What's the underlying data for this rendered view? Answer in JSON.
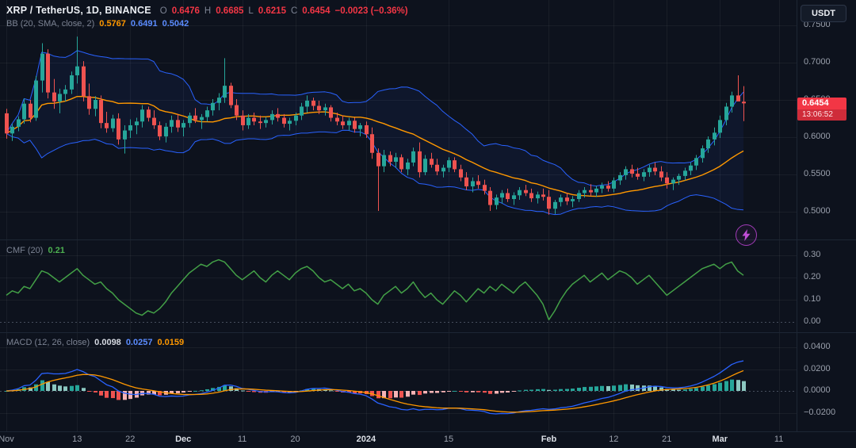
{
  "header": {
    "symbol_title": "XRP / TetherUS, 1D, BINANCE",
    "ohlc": {
      "o_label": "O",
      "o_value": "0.6476",
      "h_label": "H",
      "h_value": "0.6685",
      "l_label": "L",
      "l_value": "0.6215",
      "c_label": "C",
      "c_value": "0.6454",
      "change": "−0.0023 (−0.36%)"
    },
    "bb_legend": {
      "label": "BB (20, SMA, close, 2)",
      "basis": "0.5767",
      "upper": "0.6491",
      "lower": "0.5042"
    },
    "usdt_button": "USDT"
  },
  "price_scale": {
    "badge": {
      "price": "0.6454",
      "countdown": "13:06:52"
    }
  },
  "panes": {
    "cmf": {
      "title": "CMF (20)",
      "value": "0.21"
    },
    "macd": {
      "title": "MACD (12, 26, close)",
      "hist": "0.0098",
      "macd": "0.0257",
      "signal": "0.0159"
    }
  },
  "colors": {
    "background": "#0d121d",
    "grid": "rgba(255,255,255,0.05)",
    "separator": "#1d2634",
    "zero_line": "rgba(140,152,172,0.45)",
    "up": "#26a69a",
    "down": "#ef5350",
    "bb_band": "#2962ff",
    "bb_basis": "#ff9800",
    "bb_fill": "rgba(41,98,255,0.07)",
    "cmf_line": "#43a047",
    "macd_line": "#2962ff",
    "signal_line": "#ff9800",
    "hist_up": "#26a69a",
    "hist_up_fade": "#8cc8c1",
    "hist_down": "#ef5350",
    "hist_down_fade": "#f5b3b5",
    "badge_bg": "#f23645",
    "value_red": "#f23645",
    "value_blue": "#5b8cff",
    "value_orange": "#ff9800",
    "value_green": "#4caf50"
  },
  "chart_data": {
    "type": "candlestick",
    "title": "XRP / TetherUS, 1D, BINANCE",
    "interval": "1D",
    "last_price": 0.6454,
    "price_grid": {
      "values": [
        0.75,
        0.7,
        0.65,
        0.6,
        0.55,
        0.5
      ],
      "labels": [
        "0.7500",
        "0.7000",
        "0.6500",
        "0.6000",
        "0.5500",
        "0.5000"
      ]
    },
    "x_axis": {
      "ticks": [
        {
          "label": "Nov",
          "index": 0,
          "major": false
        },
        {
          "label": "13",
          "index": 12,
          "major": false
        },
        {
          "label": "22",
          "index": 21,
          "major": false
        },
        {
          "label": "Dec",
          "index": 30,
          "major": true
        },
        {
          "label": "11",
          "index": 40,
          "major": false
        },
        {
          "label": "20",
          "index": 49,
          "major": false
        },
        {
          "label": "2024",
          "index": 61,
          "major": true
        },
        {
          "label": "15",
          "index": 75,
          "major": false
        },
        {
          "label": "Feb",
          "index": 92,
          "major": true
        },
        {
          "label": "12",
          "index": 103,
          "major": false
        },
        {
          "label": "21",
          "index": 112,
          "major": false
        },
        {
          "label": "Mar",
          "index": 121,
          "major": true
        },
        {
          "label": "11",
          "index": 131,
          "major": false
        }
      ]
    },
    "candles": [
      [
        0.632,
        0.638,
        0.598,
        0.605
      ],
      [
        0.605,
        0.618,
        0.595,
        0.614
      ],
      [
        0.614,
        0.628,
        0.608,
        0.624
      ],
      [
        0.624,
        0.652,
        0.618,
        0.645
      ],
      [
        0.645,
        0.65,
        0.62,
        0.626
      ],
      [
        0.626,
        0.682,
        0.622,
        0.676
      ],
      [
        0.676,
        0.726,
        0.66,
        0.712
      ],
      [
        0.712,
        0.718,
        0.652,
        0.66
      ],
      [
        0.66,
        0.678,
        0.638,
        0.648
      ],
      [
        0.648,
        0.665,
        0.632,
        0.658
      ],
      [
        0.658,
        0.67,
        0.648,
        0.664
      ],
      [
        0.664,
        0.688,
        0.658,
        0.683
      ],
      [
        0.683,
        0.735,
        0.672,
        0.695
      ],
      [
        0.695,
        0.702,
        0.648,
        0.655
      ],
      [
        0.655,
        0.672,
        0.63,
        0.638
      ],
      [
        0.638,
        0.655,
        0.628,
        0.65
      ],
      [
        0.65,
        0.656,
        0.612,
        0.619
      ],
      [
        0.619,
        0.634,
        0.606,
        0.612
      ],
      [
        0.612,
        0.63,
        0.607,
        0.625
      ],
      [
        0.625,
        0.632,
        0.59,
        0.597
      ],
      [
        0.597,
        0.616,
        0.578,
        0.609
      ],
      [
        0.609,
        0.624,
        0.599,
        0.616
      ],
      [
        0.616,
        0.626,
        0.604,
        0.621
      ],
      [
        0.621,
        0.643,
        0.613,
        0.637
      ],
      [
        0.637,
        0.641,
        0.621,
        0.626
      ],
      [
        0.626,
        0.636,
        0.611,
        0.616
      ],
      [
        0.616,
        0.621,
        0.596,
        0.601
      ],
      [
        0.601,
        0.619,
        0.593,
        0.614
      ],
      [
        0.614,
        0.629,
        0.606,
        0.623
      ],
      [
        0.623,
        0.631,
        0.607,
        0.613
      ],
      [
        0.613,
        0.623,
        0.601,
        0.619
      ],
      [
        0.619,
        0.633,
        0.613,
        0.629
      ],
      [
        0.629,
        0.639,
        0.619,
        0.623
      ],
      [
        0.623,
        0.631,
        0.611,
        0.627
      ],
      [
        0.627,
        0.641,
        0.621,
        0.636
      ],
      [
        0.636,
        0.651,
        0.629,
        0.646
      ],
      [
        0.646,
        0.659,
        0.636,
        0.653
      ],
      [
        0.653,
        0.706,
        0.646,
        0.669
      ],
      [
        0.669,
        0.673,
        0.639,
        0.643
      ],
      [
        0.643,
        0.651,
        0.623,
        0.629
      ],
      [
        0.629,
        0.636,
        0.609,
        0.616
      ],
      [
        0.616,
        0.631,
        0.611,
        0.626
      ],
      [
        0.626,
        0.633,
        0.616,
        0.621
      ],
      [
        0.621,
        0.629,
        0.611,
        0.619
      ],
      [
        0.619,
        0.627,
        0.613,
        0.623
      ],
      [
        0.623,
        0.636,
        0.617,
        0.631
      ],
      [
        0.631,
        0.639,
        0.621,
        0.626
      ],
      [
        0.626,
        0.631,
        0.613,
        0.618
      ],
      [
        0.618,
        0.626,
        0.609,
        0.622
      ],
      [
        0.622,
        0.633,
        0.616,
        0.629
      ],
      [
        0.629,
        0.646,
        0.623,
        0.641
      ],
      [
        0.641,
        0.656,
        0.633,
        0.649
      ],
      [
        0.649,
        0.653,
        0.636,
        0.642
      ],
      [
        0.642,
        0.649,
        0.631,
        0.636
      ],
      [
        0.636,
        0.645,
        0.629,
        0.64
      ],
      [
        0.64,
        0.643,
        0.621,
        0.626
      ],
      [
        0.626,
        0.633,
        0.616,
        0.621
      ],
      [
        0.621,
        0.629,
        0.611,
        0.616
      ],
      [
        0.616,
        0.626,
        0.609,
        0.622
      ],
      [
        0.622,
        0.626,
        0.606,
        0.611
      ],
      [
        0.611,
        0.619,
        0.601,
        0.616
      ],
      [
        0.616,
        0.621,
        0.599,
        0.604
      ],
      [
        0.604,
        0.613,
        0.571,
        0.579
      ],
      [
        0.579,
        0.585,
        0.501,
        0.561
      ],
      [
        0.561,
        0.583,
        0.553,
        0.576
      ],
      [
        0.576,
        0.581,
        0.561,
        0.567
      ],
      [
        0.567,
        0.579,
        0.559,
        0.573
      ],
      [
        0.573,
        0.577,
        0.553,
        0.557
      ],
      [
        0.557,
        0.571,
        0.549,
        0.566
      ],
      [
        0.566,
        0.586,
        0.561,
        0.581
      ],
      [
        0.581,
        0.593,
        0.546,
        0.553
      ],
      [
        0.553,
        0.576,
        0.549,
        0.571
      ],
      [
        0.571,
        0.579,
        0.559,
        0.563
      ],
      [
        0.563,
        0.571,
        0.549,
        0.554
      ],
      [
        0.554,
        0.563,
        0.546,
        0.559
      ],
      [
        0.559,
        0.573,
        0.553,
        0.569
      ],
      [
        0.569,
        0.573,
        0.553,
        0.557
      ],
      [
        0.557,
        0.563,
        0.541,
        0.546
      ],
      [
        0.546,
        0.553,
        0.529,
        0.534
      ],
      [
        0.534,
        0.546,
        0.526,
        0.541
      ],
      [
        0.541,
        0.549,
        0.531,
        0.536
      ],
      [
        0.536,
        0.543,
        0.523,
        0.528
      ],
      [
        0.528,
        0.533,
        0.501,
        0.509
      ],
      [
        0.509,
        0.523,
        0.503,
        0.519
      ],
      [
        0.519,
        0.529,
        0.511,
        0.525
      ],
      [
        0.525,
        0.531,
        0.513,
        0.517
      ],
      [
        0.517,
        0.526,
        0.509,
        0.522
      ],
      [
        0.522,
        0.533,
        0.516,
        0.529
      ],
      [
        0.529,
        0.536,
        0.521,
        0.525
      ],
      [
        0.525,
        0.531,
        0.513,
        0.518
      ],
      [
        0.518,
        0.527,
        0.511,
        0.523
      ],
      [
        0.523,
        0.531,
        0.515,
        0.52
      ],
      [
        0.52,
        0.529,
        0.496,
        0.504
      ],
      [
        0.504,
        0.516,
        0.497,
        0.513
      ],
      [
        0.513,
        0.523,
        0.507,
        0.519
      ],
      [
        0.519,
        0.525,
        0.509,
        0.514
      ],
      [
        0.514,
        0.521,
        0.506,
        0.517
      ],
      [
        0.517,
        0.529,
        0.513,
        0.525
      ],
      [
        0.525,
        0.533,
        0.519,
        0.529
      ],
      [
        0.529,
        0.537,
        0.521,
        0.526
      ],
      [
        0.526,
        0.535,
        0.52,
        0.531
      ],
      [
        0.531,
        0.539,
        0.525,
        0.535
      ],
      [
        0.535,
        0.541,
        0.527,
        0.531
      ],
      [
        0.531,
        0.546,
        0.526,
        0.542
      ],
      [
        0.542,
        0.553,
        0.536,
        0.549
      ],
      [
        0.549,
        0.561,
        0.543,
        0.557
      ],
      [
        0.557,
        0.563,
        0.546,
        0.551
      ],
      [
        0.551,
        0.559,
        0.543,
        0.547
      ],
      [
        0.547,
        0.557,
        0.541,
        0.553
      ],
      [
        0.553,
        0.563,
        0.547,
        0.559
      ],
      [
        0.559,
        0.566,
        0.549,
        0.554
      ],
      [
        0.554,
        0.561,
        0.541,
        0.546
      ],
      [
        0.546,
        0.553,
        0.531,
        0.538
      ],
      [
        0.538,
        0.546,
        0.529,
        0.543
      ],
      [
        0.543,
        0.551,
        0.536,
        0.548
      ],
      [
        0.548,
        0.559,
        0.542,
        0.555
      ],
      [
        0.555,
        0.566,
        0.549,
        0.562
      ],
      [
        0.562,
        0.576,
        0.556,
        0.572
      ],
      [
        0.572,
        0.589,
        0.566,
        0.585
      ],
      [
        0.585,
        0.601,
        0.579,
        0.597
      ],
      [
        0.597,
        0.613,
        0.589,
        0.606
      ],
      [
        0.606,
        0.629,
        0.599,
        0.623
      ],
      [
        0.623,
        0.646,
        0.616,
        0.641
      ],
      [
        0.641,
        0.661,
        0.633,
        0.656
      ],
      [
        0.656,
        0.683,
        0.649,
        0.648
      ],
      [
        0.6476,
        0.6685,
        0.6215,
        0.6454
      ]
    ],
    "indicators": {
      "bollinger": {
        "period": 20,
        "mult": 2,
        "basis": "0.5767",
        "upper": "0.6491",
        "lower": "0.5042"
      },
      "cmf": {
        "period": 20,
        "last": "0.21",
        "grid_values": [
          0.3,
          0.2,
          0.1,
          0.0
        ],
        "grid_labels": [
          "0.30",
          "0.20",
          "0.10",
          "0.00"
        ],
        "values": [
          0.12,
          0.14,
          0.13,
          0.16,
          0.15,
          0.19,
          0.23,
          0.22,
          0.2,
          0.18,
          0.2,
          0.22,
          0.24,
          0.21,
          0.19,
          0.17,
          0.18,
          0.15,
          0.13,
          0.1,
          0.08,
          0.06,
          0.04,
          0.03,
          0.05,
          0.04,
          0.06,
          0.09,
          0.13,
          0.16,
          0.19,
          0.22,
          0.24,
          0.26,
          0.25,
          0.27,
          0.28,
          0.27,
          0.24,
          0.21,
          0.19,
          0.21,
          0.23,
          0.2,
          0.18,
          0.21,
          0.23,
          0.21,
          0.19,
          0.22,
          0.24,
          0.25,
          0.23,
          0.2,
          0.18,
          0.19,
          0.17,
          0.15,
          0.17,
          0.14,
          0.15,
          0.13,
          0.1,
          0.08,
          0.12,
          0.14,
          0.16,
          0.13,
          0.15,
          0.18,
          0.14,
          0.11,
          0.13,
          0.1,
          0.08,
          0.11,
          0.14,
          0.12,
          0.09,
          0.12,
          0.15,
          0.13,
          0.16,
          0.14,
          0.17,
          0.15,
          0.13,
          0.16,
          0.18,
          0.15,
          0.12,
          0.08,
          0.01,
          0.05,
          0.1,
          0.14,
          0.17,
          0.19,
          0.21,
          0.18,
          0.2,
          0.22,
          0.19,
          0.21,
          0.23,
          0.22,
          0.2,
          0.17,
          0.19,
          0.21,
          0.18,
          0.15,
          0.12,
          0.14,
          0.16,
          0.18,
          0.2,
          0.22,
          0.24,
          0.25,
          0.26,
          0.24,
          0.26,
          0.27,
          0.23,
          0.21
        ]
      },
      "macd": {
        "fast": 12,
        "slow": 26,
        "signal_period": 9,
        "hist": "0.0098",
        "macd": "0.0257",
        "signal": "0.0159",
        "grid_values": [
          0.04,
          0.02,
          0.0,
          -0.02
        ],
        "grid_labels": [
          "0.0400",
          "0.0200",
          "0.0000",
          "−0.0200"
        ]
      }
    }
  }
}
